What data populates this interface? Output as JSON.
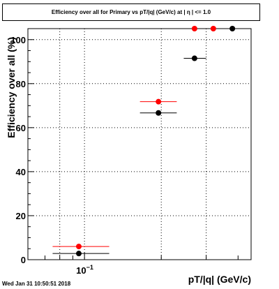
{
  "chart_data": {
    "type": "scatter",
    "title": "Efficiency over all for Primary vs pT/|q| (GeV/c) at | η | <= 1.0",
    "xlabel": "pT/|q| (GeV/c)",
    "ylabel": "Efficiency over all (%)",
    "x_scale": "log",
    "xlim": [
      0.06,
      0.45
    ],
    "ylim": [
      0,
      105
    ],
    "grid": true,
    "x_ticks": [
      {
        "value": 0.1,
        "base": "10",
        "exp": "−1"
      }
    ],
    "y_ticks": [
      0,
      20,
      40,
      60,
      80,
      100
    ],
    "series": [
      {
        "color": "#ff0000",
        "points": [
          {
            "x": 0.095,
            "y": 6.0,
            "xlow": 0.075,
            "xhigh": 0.125
          },
          {
            "x": 0.195,
            "y": 71.8,
            "xlow": 0.165,
            "xhigh": 0.23
          },
          {
            "x": 0.27,
            "y": 105
          },
          {
            "x": 0.32,
            "y": 105
          }
        ]
      },
      {
        "color": "#000000",
        "points": [
          {
            "x": 0.095,
            "y": 2.8,
            "xlow": 0.075,
            "xhigh": 0.125
          },
          {
            "x": 0.195,
            "y": 66.7,
            "xlow": 0.165,
            "xhigh": 0.23
          },
          {
            "x": 0.27,
            "y": 91.5,
            "xlow": 0.245,
            "xhigh": 0.3
          },
          {
            "x": 0.38,
            "y": 105
          }
        ]
      }
    ]
  },
  "footer": {
    "date": "Wed Jan 31 10:50:51 2018"
  }
}
